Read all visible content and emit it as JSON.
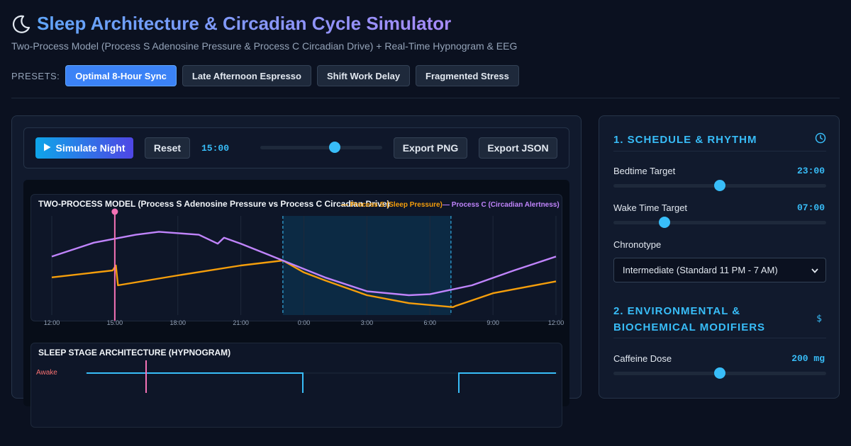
{
  "header": {
    "title": "Sleep Architecture & Circadian Cycle Simulator",
    "subtitle": "Two-Process Model (Process S Adenosine Pressure & Process C Circadian Drive) + Real-Time Hypnogram & EEG"
  },
  "presets": {
    "label": "PRESETS:",
    "items": [
      {
        "label": "Optimal 8-Hour Sync",
        "active": true
      },
      {
        "label": "Late Afternoon Espresso",
        "active": false
      },
      {
        "label": "Shift Work Delay",
        "active": false
      },
      {
        "label": "Fragmented Stress",
        "active": false
      }
    ]
  },
  "toolbar": {
    "simulate_label": "Simulate Night",
    "reset_label": "Reset",
    "time_readout": "15:00",
    "timeline_position": 0.61,
    "export_png_label": "Export PNG",
    "export_json_label": "Export JSON"
  },
  "two_process": {
    "title": "TWO-PROCESS MODEL (Process S Adenosine Pressure vs Process C Circadian Drive)",
    "legend_s": "— Process S (Sleep Pressure)",
    "legend_c": "— Process C (Circadian Alertness)",
    "colors": {
      "s": "#f59e0b",
      "c": "#c084fc",
      "marker": "#f472b6",
      "sleep_window": "#0c2a44"
    }
  },
  "hypnogram": {
    "title": "SLEEP STAGE ARCHITECTURE (HYPNOGRAM)",
    "awake_label": "Awake"
  },
  "chart_data": {
    "type": "line",
    "x_tick_labels": [
      "12:00",
      "15:00",
      "18:00",
      "21:00",
      "0:00",
      "3:00",
      "6:00",
      "9:00",
      "12:00"
    ],
    "x_hours": [
      0,
      3,
      6,
      9,
      12,
      15,
      18,
      21,
      24
    ],
    "current_time_hour": 3.0,
    "sleep_window_hours": [
      11.0,
      19.0
    ],
    "series": [
      {
        "name": "Process S (Sleep Pressure)",
        "x": [
          0,
          2.9,
          3.05,
          3.15,
          6,
          9,
          11,
          12,
          13,
          15,
          17,
          19.1,
          19.2,
          21,
          24
        ],
        "y": [
          0.38,
          0.45,
          0.5,
          0.3,
          0.4,
          0.5,
          0.55,
          0.43,
          0.35,
          0.2,
          0.12,
          0.08,
          0.09,
          0.22,
          0.34
        ]
      },
      {
        "name": "Process C (Circadian Alertness)",
        "x": [
          0,
          2,
          4,
          5.1,
          7,
          7.9,
          8.2,
          9,
          11,
          13,
          15,
          17,
          18,
          20,
          22,
          24
        ],
        "y": [
          0.59,
          0.73,
          0.81,
          0.84,
          0.81,
          0.72,
          0.78,
          0.72,
          0.55,
          0.38,
          0.24,
          0.2,
          0.21,
          0.3,
          0.45,
          0.59
        ]
      }
    ]
  },
  "settings": {
    "schedule": {
      "title": "1. SCHEDULE & RHYTHM",
      "bedtime_label": "Bedtime Target",
      "bedtime_value": "23:00",
      "bedtime_position": 0.5,
      "wake_label": "Wake Time Target",
      "wake_value": "07:00",
      "wake_position": 0.24,
      "chronotype_label": "Chronotype",
      "chronotype_value": "Intermediate (Standard 11 PM - 7 AM)"
    },
    "environment": {
      "title_line1": "2. ENVIRONMENTAL &",
      "title_line2": "BIOCHEMICAL MODIFIERS",
      "caffeine_label": "Caffeine Dose",
      "caffeine_value": "200 mg",
      "caffeine_position": 0.5,
      "icon_glyph": "$"
    }
  }
}
